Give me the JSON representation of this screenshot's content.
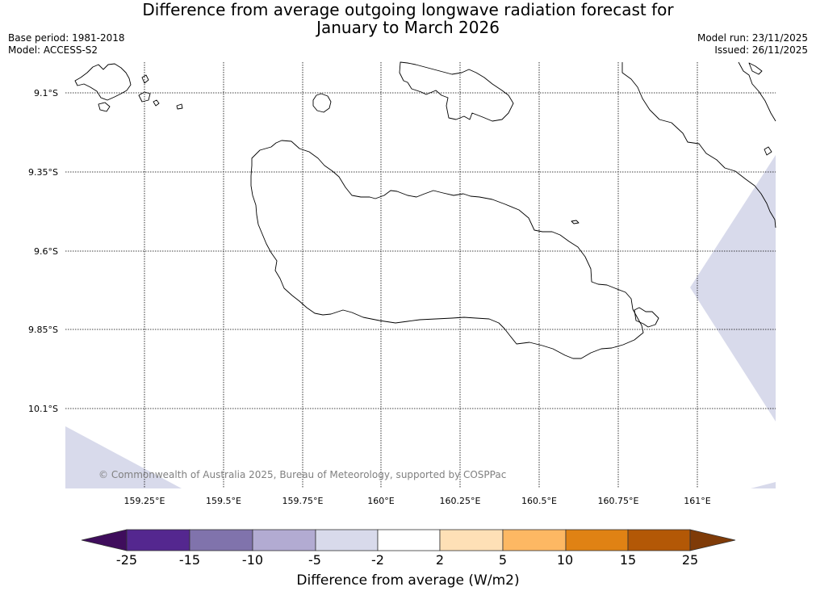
{
  "header": {
    "title_line1": "Difference from average outgoing longwave radiation forecast for",
    "title_line2": "January to March 2026",
    "base_period": "Base period: 1981-2018",
    "model": "Model: ACCESS-S2",
    "model_run": "Model run: 23/11/2025",
    "issued": "Issued: 26/11/2025"
  },
  "map": {
    "copyright": "© Commonwealth of Australia 2025, Bureau of Meteorology, supported by COSPPac",
    "lat_labels": [
      "9.1°S",
      "9.35°S",
      "9.6°S",
      "9.85°S",
      "10.1°S"
    ],
    "lon_labels": [
      "159.25°E",
      "159.5°E",
      "159.75°E",
      "160°E",
      "160.25°E",
      "160.5°E",
      "160.75°E",
      "161°E"
    ]
  },
  "legend": {
    "title": "Difference from average (W/m2)",
    "ticks": [
      "-25",
      "-15",
      "-10",
      "-5",
      "-2",
      "2",
      "5",
      "10",
      "15",
      "25"
    ],
    "colors": [
      "#3f0d5c",
      "#54278f",
      "#8073ac",
      "#b2abd2",
      "#d8daeb",
      "#ffffff",
      "#fee0b6",
      "#fdb863",
      "#e08214",
      "#b35806",
      "#7f3b08"
    ]
  }
}
